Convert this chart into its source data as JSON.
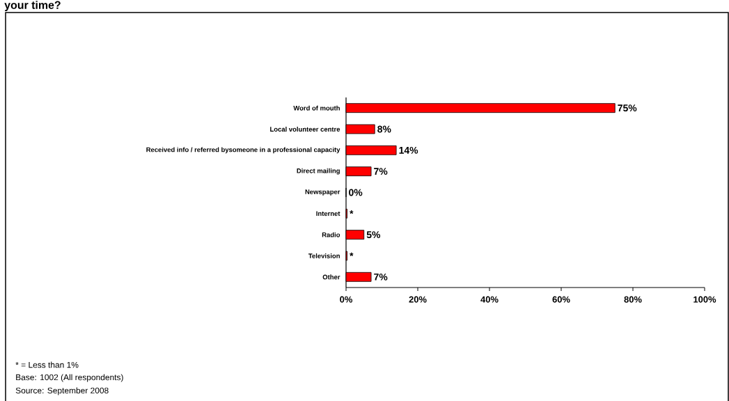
{
  "chart_data": {
    "type": "bar",
    "orientation": "horizontal",
    "title": "your time?",
    "categories": [
      "Word of mouth",
      "Local volunteer centre",
      "Received info / referred bysomeone in a professional capacity",
      "Direct mailing",
      "Newspaper",
      "Internet",
      "Radio",
      "Television",
      "Other"
    ],
    "values": [
      75,
      8,
      14,
      7,
      0,
      0.3,
      5,
      0.3,
      7
    ],
    "value_labels": [
      "75%",
      "8%",
      "14%",
      "7%",
      "0%",
      "*",
      "5%",
      "*",
      "7%"
    ],
    "color": "#ff0000",
    "xlim": [
      0,
      100
    ],
    "xticks": [
      {
        "value": 0,
        "label": "0%"
      },
      {
        "value": 20,
        "label": "20%"
      },
      {
        "value": 40,
        "label": "40%"
      },
      {
        "value": 60,
        "label": "60%"
      },
      {
        "value": 80,
        "label": "80%"
      },
      {
        "value": 100,
        "label": "100%"
      }
    ],
    "grid": false,
    "annotations": [
      "* = Less than 1%",
      "Base:    1002 (All respondents)",
      "Source:    September 2008"
    ]
  }
}
